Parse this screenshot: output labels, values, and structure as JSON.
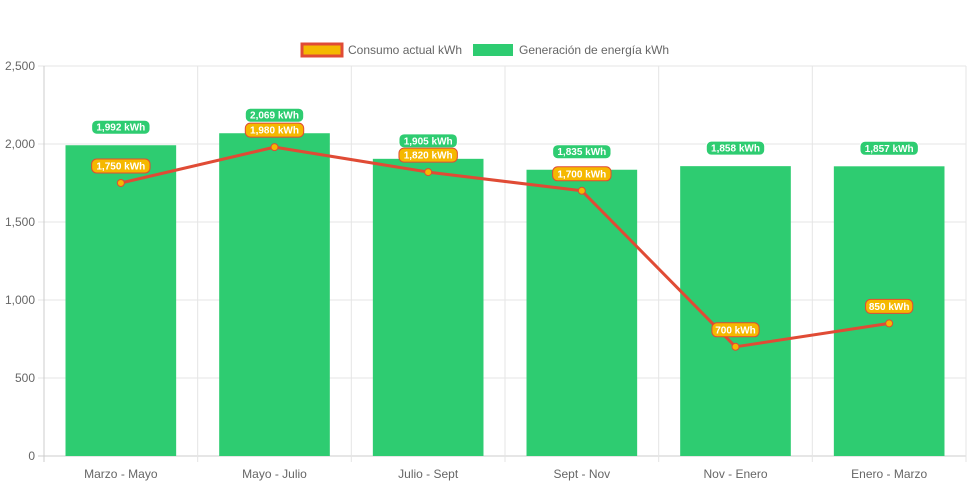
{
  "chart_data": {
    "type": "bar",
    "categories": [
      "Marzo - Mayo",
      "Mayo - Julio",
      "Julio - Sept",
      "Sept - Nov",
      "Nov - Enero",
      "Enero - Marzo"
    ],
    "series": [
      {
        "name": "Consumo actual kWh",
        "kind": "line",
        "values": [
          1750,
          1980,
          1820,
          1700,
          700,
          850
        ],
        "labels": [
          "1,750 kWh",
          "1,980 kWh",
          "1,820 kWh",
          "1,700 kWh",
          "700 kWh",
          "850 kWh"
        ],
        "color": "#e04b35",
        "fill": "#f5b800"
      },
      {
        "name": "Generación de energía kWh",
        "kind": "bar",
        "values": [
          1992,
          2069,
          1905,
          1835,
          1858,
          1857
        ],
        "labels": [
          "1,992 kWh",
          "2,069 kWh",
          "1,905 kWh",
          "1,835 kWh",
          "1,858 kWh",
          "1,857 kWh"
        ],
        "color": "#2ecc71"
      }
    ],
    "y_ticks": [
      "0",
      "500",
      "1,000",
      "1,500",
      "2,000",
      "2,500"
    ],
    "ylim": [
      0,
      2500
    ],
    "grid": true,
    "legend": "top"
  }
}
